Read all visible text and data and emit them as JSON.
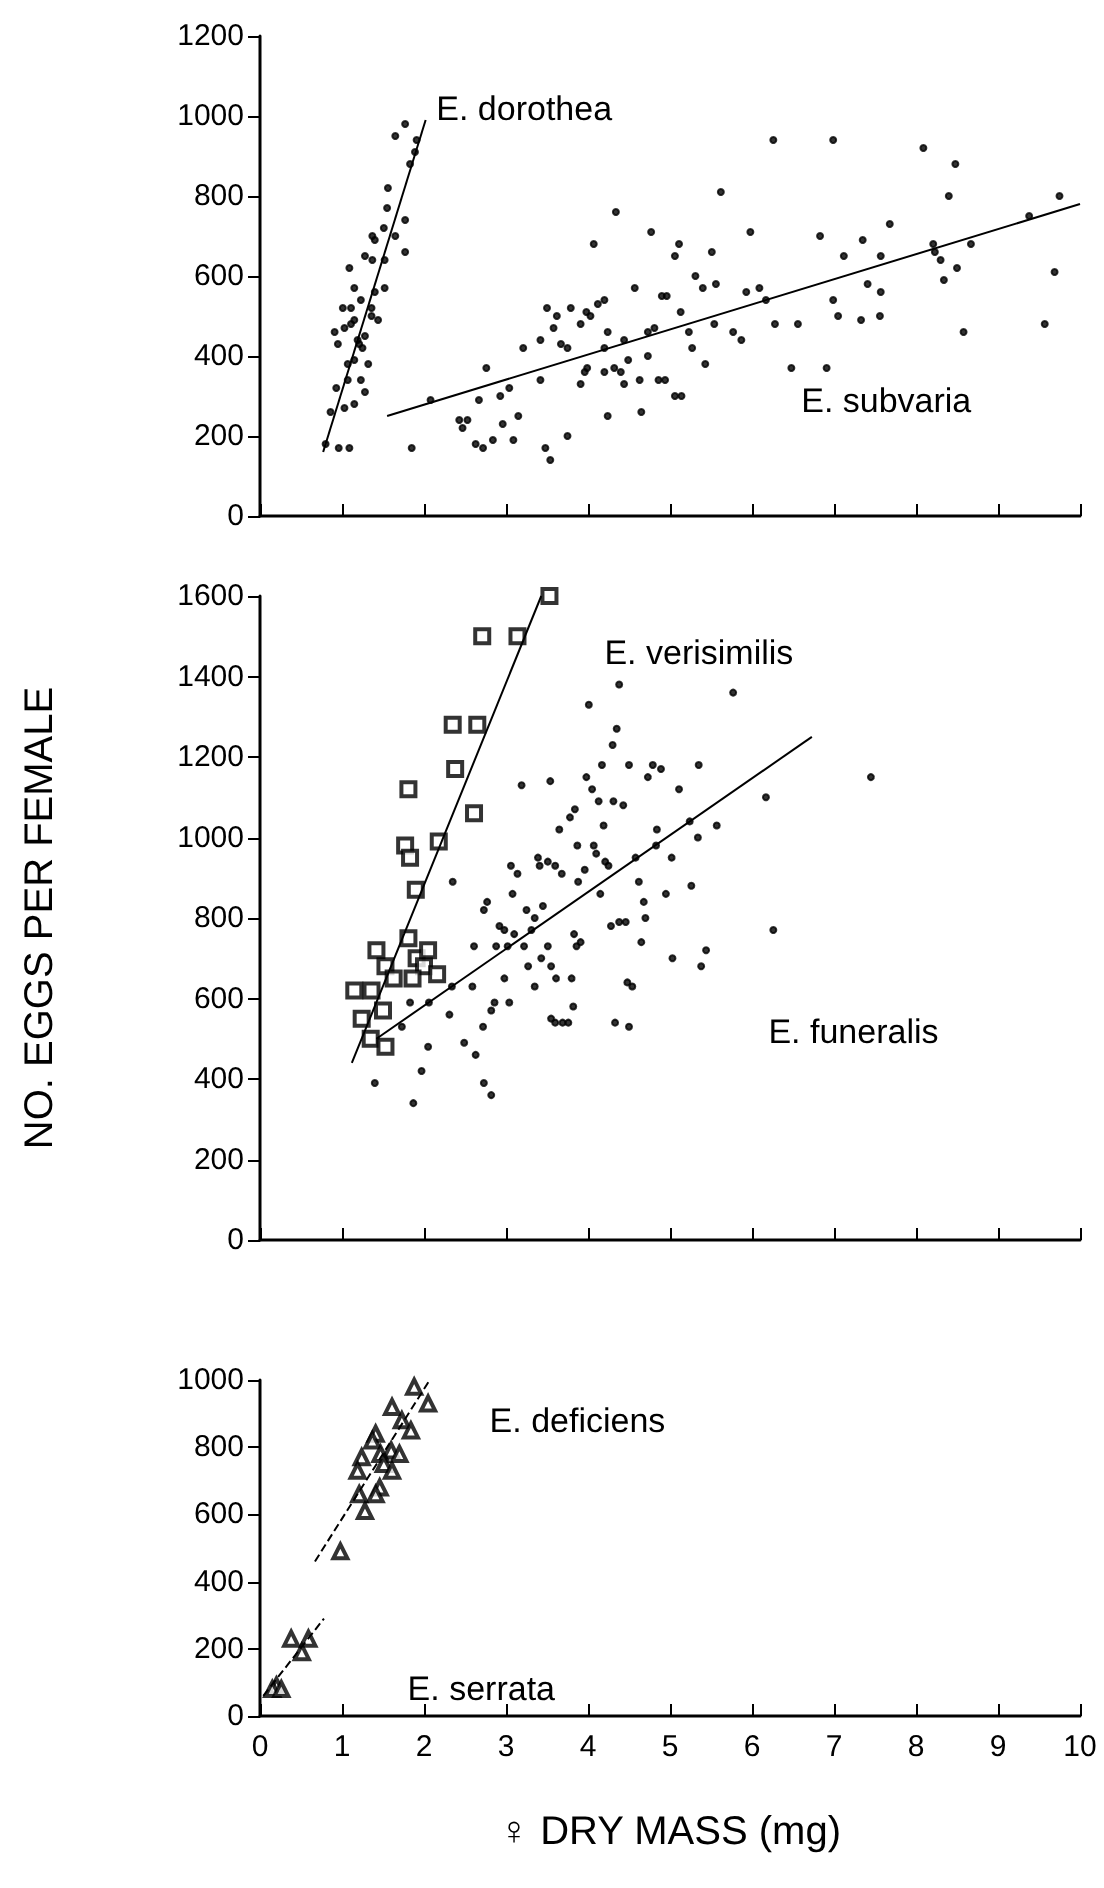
{
  "chart_data": [
    {
      "type": "scatter",
      "xlim": [
        0,
        10
      ],
      "xticks": [
        0,
        1,
        2,
        3,
        4,
        5,
        6,
        7,
        8,
        9,
        10
      ],
      "ylim": [
        0,
        1200
      ],
      "yticks": [
        0,
        200,
        400,
        600,
        800,
        1000,
        1200
      ],
      "tick_labels": "y",
      "series": [
        {
          "name": "E. dorothea",
          "color": "#000000",
          "marker": "circle",
          "x": [
            1.77,
            1.65,
            1.91,
            1.83,
            1.89,
            1.56,
            1.55,
            1.77,
            1.51,
            1.37,
            1.4,
            1.65,
            1.77,
            1.28,
            1.52,
            1.09,
            1.37,
            1.15,
            1.52,
            1.4,
            1.01,
            1.11,
            1.23,
            0.91,
            1.03,
            1.36,
            1.44,
            1.15,
            0.95,
            1.19,
            1.25,
            1.15,
            1.07,
            1.32,
            0.93,
            1.07,
            1.23,
            1.28,
            1.03,
            1.15,
            0.86,
            0.8,
            0.96,
            1.09,
            1.21,
            1.36,
            1.11,
            1.28
          ],
          "values": [
            980,
            950,
            940,
            880,
            910,
            820,
            770,
            740,
            720,
            700,
            690,
            700,
            660,
            650,
            640,
            620,
            640,
            570,
            570,
            560,
            520,
            520,
            540,
            460,
            470,
            500,
            490,
            490,
            430,
            440,
            420,
            390,
            380,
            380,
            320,
            340,
            340,
            310,
            270,
            280,
            260,
            180,
            170,
            170,
            430,
            520,
            480,
            450
          ]
        },
        {
          "name": "E. subvaria",
          "color": "#000000",
          "marker": "circle",
          "x": [
            2.08,
            1.85,
            2.43,
            2.53,
            2.47,
            2.67,
            2.76,
            2.63,
            2.72,
            2.84,
            2.96,
            3.09,
            3.04,
            3.15,
            2.93,
            3.21,
            3.42,
            3.42,
            3.48,
            3.54,
            3.5,
            3.62,
            3.58,
            3.67,
            3.75,
            3.79,
            3.75,
            3.91,
            3.98,
            4.03,
            3.96,
            3.91,
            3.99,
            4.07,
            4.12,
            4.2,
            4.24,
            4.2,
            4.24,
            4.2,
            4.34,
            4.32,
            4.4,
            4.44,
            4.44,
            4.49,
            4.57,
            4.65,
            4.63,
            4.73,
            4.73,
            4.77,
            4.81,
            4.86,
            4.9,
            4.96,
            4.94,
            5.06,
            5.11,
            5.06,
            5.14,
            5.13,
            5.23,
            5.27,
            5.31,
            5.4,
            5.43,
            5.51,
            5.54,
            5.56,
            5.62,
            5.77,
            5.87,
            5.93,
            5.98,
            6.09,
            6.17,
            6.26,
            6.28,
            6.48,
            6.56,
            6.83,
            6.91,
            6.99,
            6.99,
            7.05,
            7.12,
            7.33,
            7.35,
            7.41,
            7.57,
            7.56,
            7.57,
            7.68,
            8.09,
            8.21,
            8.23,
            8.3,
            8.34,
            8.4,
            8.48,
            8.5,
            8.58,
            8.67,
            9.38,
            9.57,
            9.69,
            9.75
          ],
          "values": [
            290,
            170,
            240,
            240,
            220,
            290,
            370,
            180,
            170,
            190,
            230,
            190,
            320,
            250,
            300,
            420,
            440,
            340,
            170,
            140,
            520,
            500,
            470,
            430,
            420,
            520,
            200,
            480,
            510,
            500,
            360,
            330,
            370,
            680,
            530,
            540,
            460,
            420,
            250,
            360,
            760,
            370,
            360,
            330,
            440,
            390,
            570,
            260,
            340,
            460,
            400,
            710,
            470,
            340,
            550,
            550,
            340,
            650,
            680,
            300,
            300,
            510,
            460,
            420,
            600,
            570,
            380,
            660,
            480,
            580,
            810,
            460,
            440,
            560,
            710,
            570,
            540,
            940,
            480,
            370,
            480,
            700,
            370,
            540,
            940,
            500,
            650,
            490,
            690,
            580,
            560,
            500,
            650,
            730,
            920,
            680,
            660,
            640,
            590,
            800,
            880,
            620,
            460,
            680,
            750,
            480,
            610,
            800
          ]
        },
        {
          "color": "#000000",
          "type": "line",
          "marker": "none",
          "line_style": "solid",
          "x": [
            0.77,
            2.02
          ],
          "values": [
            160,
            990
          ]
        },
        {
          "color": "#000000",
          "type": "line",
          "marker": "none",
          "line_style": "solid",
          "x": [
            1.55,
            10
          ],
          "values": [
            250,
            780
          ]
        }
      ]
    },
    {
      "type": "scatter",
      "xlim": [
        0,
        10
      ],
      "xticks": [
        0,
        1,
        2,
        3,
        4,
        5,
        6,
        7,
        8,
        9,
        10
      ],
      "ylim": [
        0,
        1600
      ],
      "yticks": [
        0,
        200,
        400,
        600,
        800,
        1000,
        1200,
        1400,
        1600
      ],
      "tick_labels": "y",
      "ylabel": "NO. EGGS PER FEMALE",
      "series": [
        {
          "name": "E. verisimilis",
          "color": "#000000",
          "marker": "square",
          "x": [
            3.53,
            2.71,
            3.14,
            2.35,
            2.65,
            2.38,
            1.81,
            2.61,
            2.18,
            1.77,
            1.83,
            1.9,
            1.81,
            1.42,
            1.53,
            1.63,
            1.91,
            2.0,
            2.05,
            2.16,
            1.86,
            1.15,
            1.36,
            1.5,
            1.24,
            1.35,
            1.53
          ],
          "values": [
            1600,
            1500,
            1500,
            1280,
            1280,
            1170,
            1120,
            1060,
            990,
            980,
            950,
            870,
            750,
            720,
            680,
            650,
            700,
            680,
            720,
            660,
            650,
            620,
            620,
            570,
            550,
            500,
            480
          ]
        },
        {
          "name": "E. funeralis",
          "color": "#000000",
          "marker": "circle",
          "x": [
            1.4,
            1.73,
            1.83,
            1.87,
            1.97,
            2.05,
            2.06,
            2.31,
            2.34,
            2.35,
            2.49,
            2.59,
            2.61,
            2.63,
            2.72,
            2.73,
            2.77,
            2.73,
            2.82,
            2.82,
            2.86,
            2.88,
            2.92,
            2.98,
            2.98,
            3.02,
            3.06,
            3.08,
            3.04,
            3.1,
            3.14,
            3.19,
            3.22,
            3.25,
            3.27,
            3.31,
            3.35,
            3.35,
            3.39,
            3.41,
            3.43,
            3.45,
            3.51,
            3.51,
            3.54,
            3.55,
            3.55,
            3.6,
            3.6,
            3.61,
            3.65,
            3.68,
            3.69,
            3.76,
            3.78,
            3.8,
            3.82,
            3.83,
            3.84,
            3.86,
            3.87,
            3.88,
            3.91,
            3.96,
            3.98,
            4.01,
            4.05,
            4.07,
            4.1,
            4.13,
            4.15,
            4.17,
            4.19,
            4.21,
            4.25,
            4.28,
            4.3,
            4.31,
            4.33,
            4.35,
            4.38,
            4.38,
            4.43,
            4.46,
            4.48,
            4.5,
            4.5,
            4.54,
            4.58,
            4.62,
            4.65,
            4.68,
            4.7,
            4.73,
            4.79,
            4.83,
            4.84,
            4.89,
            4.95,
            5.02,
            5.03,
            5.11,
            5.24,
            5.26,
            5.34,
            5.35,
            5.38,
            5.44,
            5.57,
            5.77,
            6.17,
            6.26,
            7.45
          ],
          "values": [
            390,
            530,
            590,
            340,
            420,
            480,
            590,
            560,
            630,
            890,
            490,
            630,
            730,
            460,
            530,
            820,
            840,
            390,
            570,
            360,
            590,
            730,
            780,
            650,
            770,
            730,
            930,
            860,
            590,
            760,
            910,
            1130,
            730,
            820,
            680,
            770,
            800,
            630,
            950,
            930,
            700,
            830,
            940,
            730,
            1140,
            680,
            550,
            540,
            930,
            650,
            1020,
            910,
            540,
            540,
            1050,
            650,
            580,
            760,
            1070,
            730,
            980,
            890,
            740,
            920,
            1150,
            1330,
            1120,
            980,
            960,
            1090,
            860,
            1180,
            1030,
            940,
            930,
            780,
            1230,
            1090,
            540,
            1270,
            1380,
            790,
            1080,
            790,
            640,
            1180,
            530,
            630,
            950,
            890,
            740,
            840,
            800,
            1150,
            1180,
            980,
            1020,
            1170,
            860,
            950,
            700,
            1120,
            1040,
            880,
            1000,
            1180,
            680,
            720,
            1030,
            1360,
            1100,
            770,
            1150
          ]
        },
        {
          "color": "#000000",
          "type": "line",
          "marker": "none",
          "line_style": "solid",
          "x": [
            1.12,
            3.43
          ],
          "values": [
            440,
            1600
          ]
        },
        {
          "color": "#000000",
          "type": "line",
          "marker": "none",
          "line_style": "solid",
          "x": [
            1.42,
            6.73
          ],
          "values": [
            500,
            1250
          ]
        }
      ]
    },
    {
      "type": "scatter",
      "xlim": [
        0,
        10
      ],
      "xticks": [
        0,
        1,
        2,
        3,
        4,
        5,
        6,
        7,
        8,
        9,
        10
      ],
      "ylim": [
        0,
        1000
      ],
      "yticks": [
        0,
        200,
        400,
        600,
        800,
        1000
      ],
      "xlabel": "♀ DRY MASS (mg)",
      "series": [
        {
          "name": "E. deficiens",
          "color": "#000000",
          "marker": "triangle",
          "x": [
            1.88,
            2.05,
            1.61,
            1.73,
            1.84,
            1.41,
            1.37,
            1.24,
            1.6,
            1.7,
            1.47,
            1.51,
            1.61,
            1.19,
            1.46,
            1.21,
            1.41,
            1.28,
            0.98
          ],
          "values": [
            980,
            930,
            920,
            880,
            850,
            840,
            820,
            770,
            790,
            780,
            780,
            750,
            730,
            730,
            680,
            660,
            660,
            610,
            490
          ]
        },
        {
          "name": "E. serrata",
          "color": "#000000",
          "marker": "triangle",
          "x": [
            0.38,
            0.59,
            0.51,
            0.2,
            0.15,
            0.26
          ],
          "values": [
            230,
            230,
            190,
            90,
            80,
            80
          ]
        },
        {
          "color": "#000000",
          "type": "line",
          "marker": "none",
          "line_style": "dashed",
          "x": [
            0.67,
            2.07
          ],
          "values": [
            460,
            1000
          ]
        },
        {
          "color": "#000000",
          "type": "line",
          "marker": "none",
          "line_style": "dashed",
          "x": [
            0.04,
            0.78
          ],
          "values": [
            60,
            290
          ]
        }
      ]
    }
  ]
}
